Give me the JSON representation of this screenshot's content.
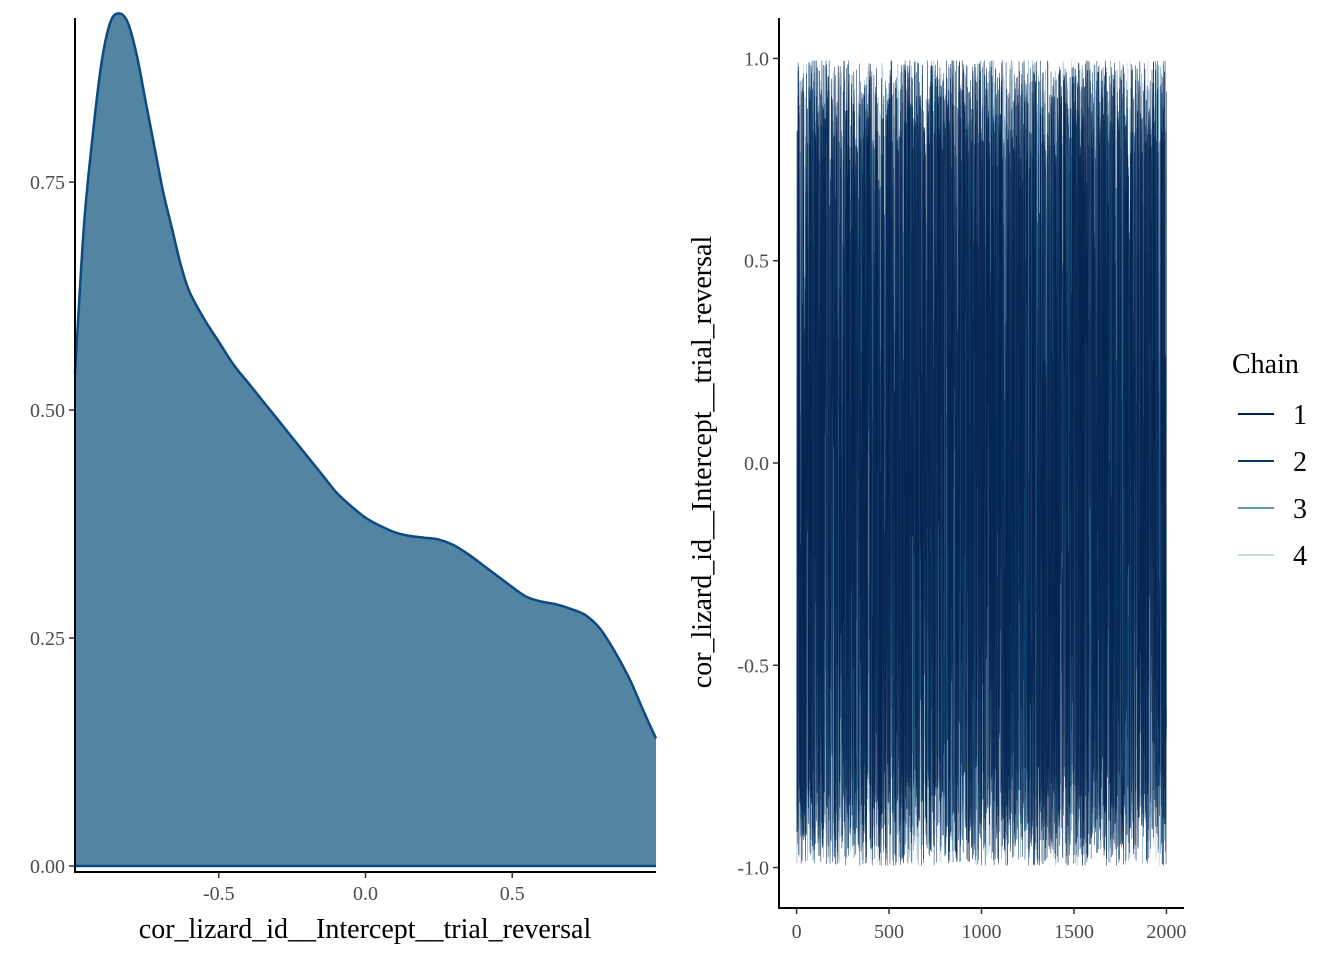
{
  "chart_data": [
    {
      "type": "area",
      "xlabel": "cor_lizard_id__Intercept__trial_reversal",
      "ylabel": "",
      "xlim": [
        -0.99,
        0.99
      ],
      "ylim": [
        0,
        0.93
      ],
      "x_ticks": [
        -0.5,
        0.0,
        0.5
      ],
      "x_tick_labels": [
        "-0.5",
        "0.0",
        "0.5"
      ],
      "y_ticks": [
        0,
        0.25,
        0.5,
        0.75
      ],
      "y_tick_labels": [
        "0.00",
        "0.25",
        "0.50",
        "0.75"
      ],
      "grid": false,
      "fill_color": "#5385a2",
      "line_color": "#0b4a82",
      "x": [
        -0.99,
        -0.96,
        -0.93,
        -0.9,
        -0.87,
        -0.84,
        -0.81,
        -0.78,
        -0.75,
        -0.72,
        -0.69,
        -0.66,
        -0.63,
        -0.6,
        -0.55,
        -0.5,
        -0.45,
        -0.4,
        -0.35,
        -0.3,
        -0.25,
        -0.2,
        -0.15,
        -0.1,
        -0.05,
        0.0,
        0.05,
        0.1,
        0.15,
        0.2,
        0.25,
        0.3,
        0.35,
        0.4,
        0.45,
        0.5,
        0.55,
        0.6,
        0.65,
        0.7,
        0.75,
        0.8,
        0.85,
        0.9,
        0.95,
        0.99
      ],
      "y": [
        0.54,
        0.7,
        0.8,
        0.88,
        0.925,
        0.935,
        0.925,
        0.89,
        0.84,
        0.79,
        0.74,
        0.7,
        0.66,
        0.63,
        0.6,
        0.575,
        0.55,
        0.53,
        0.51,
        0.49,
        0.47,
        0.45,
        0.43,
        0.41,
        0.395,
        0.382,
        0.373,
        0.366,
        0.362,
        0.36,
        0.358,
        0.352,
        0.342,
        0.33,
        0.318,
        0.306,
        0.295,
        0.29,
        0.287,
        0.282,
        0.275,
        0.26,
        0.235,
        0.205,
        0.168,
        0.14
      ]
    },
    {
      "type": "line",
      "xlabel": "",
      "ylabel": "cor_lizard_id__Intercept__trial_reversal",
      "xlim": [
        -95,
        2095
      ],
      "ylim": [
        -1.1,
        1.1
      ],
      "x_ticks": [
        0,
        500,
        1000,
        1500,
        2000
      ],
      "x_tick_labels": [
        "0",
        "500",
        "1000",
        "1500",
        "2000"
      ],
      "y_ticks": [
        -1.0,
        -0.5,
        0.0,
        0.5,
        1.0
      ],
      "y_tick_labels": [
        "-1.0",
        "-0.5",
        "0.0",
        "0.5",
        "1.0"
      ],
      "grid": false,
      "legend": {
        "title": "Chain",
        "position": "right"
      },
      "iterations": 2000,
      "series": [
        {
          "name": "1",
          "color": "#011f4b",
          "seed": 11,
          "extreme_bias": 0.9
        },
        {
          "name": "2",
          "color": "#03396c",
          "seed": 23,
          "extreme_bias": 0.75
        },
        {
          "name": "3",
          "color": "#6497b1",
          "seed": 37,
          "extreme_bias": 0.5
        },
        {
          "name": "4",
          "color": "#c8dbe8",
          "seed": 53,
          "extreme_bias": 0.1
        }
      ]
    }
  ]
}
